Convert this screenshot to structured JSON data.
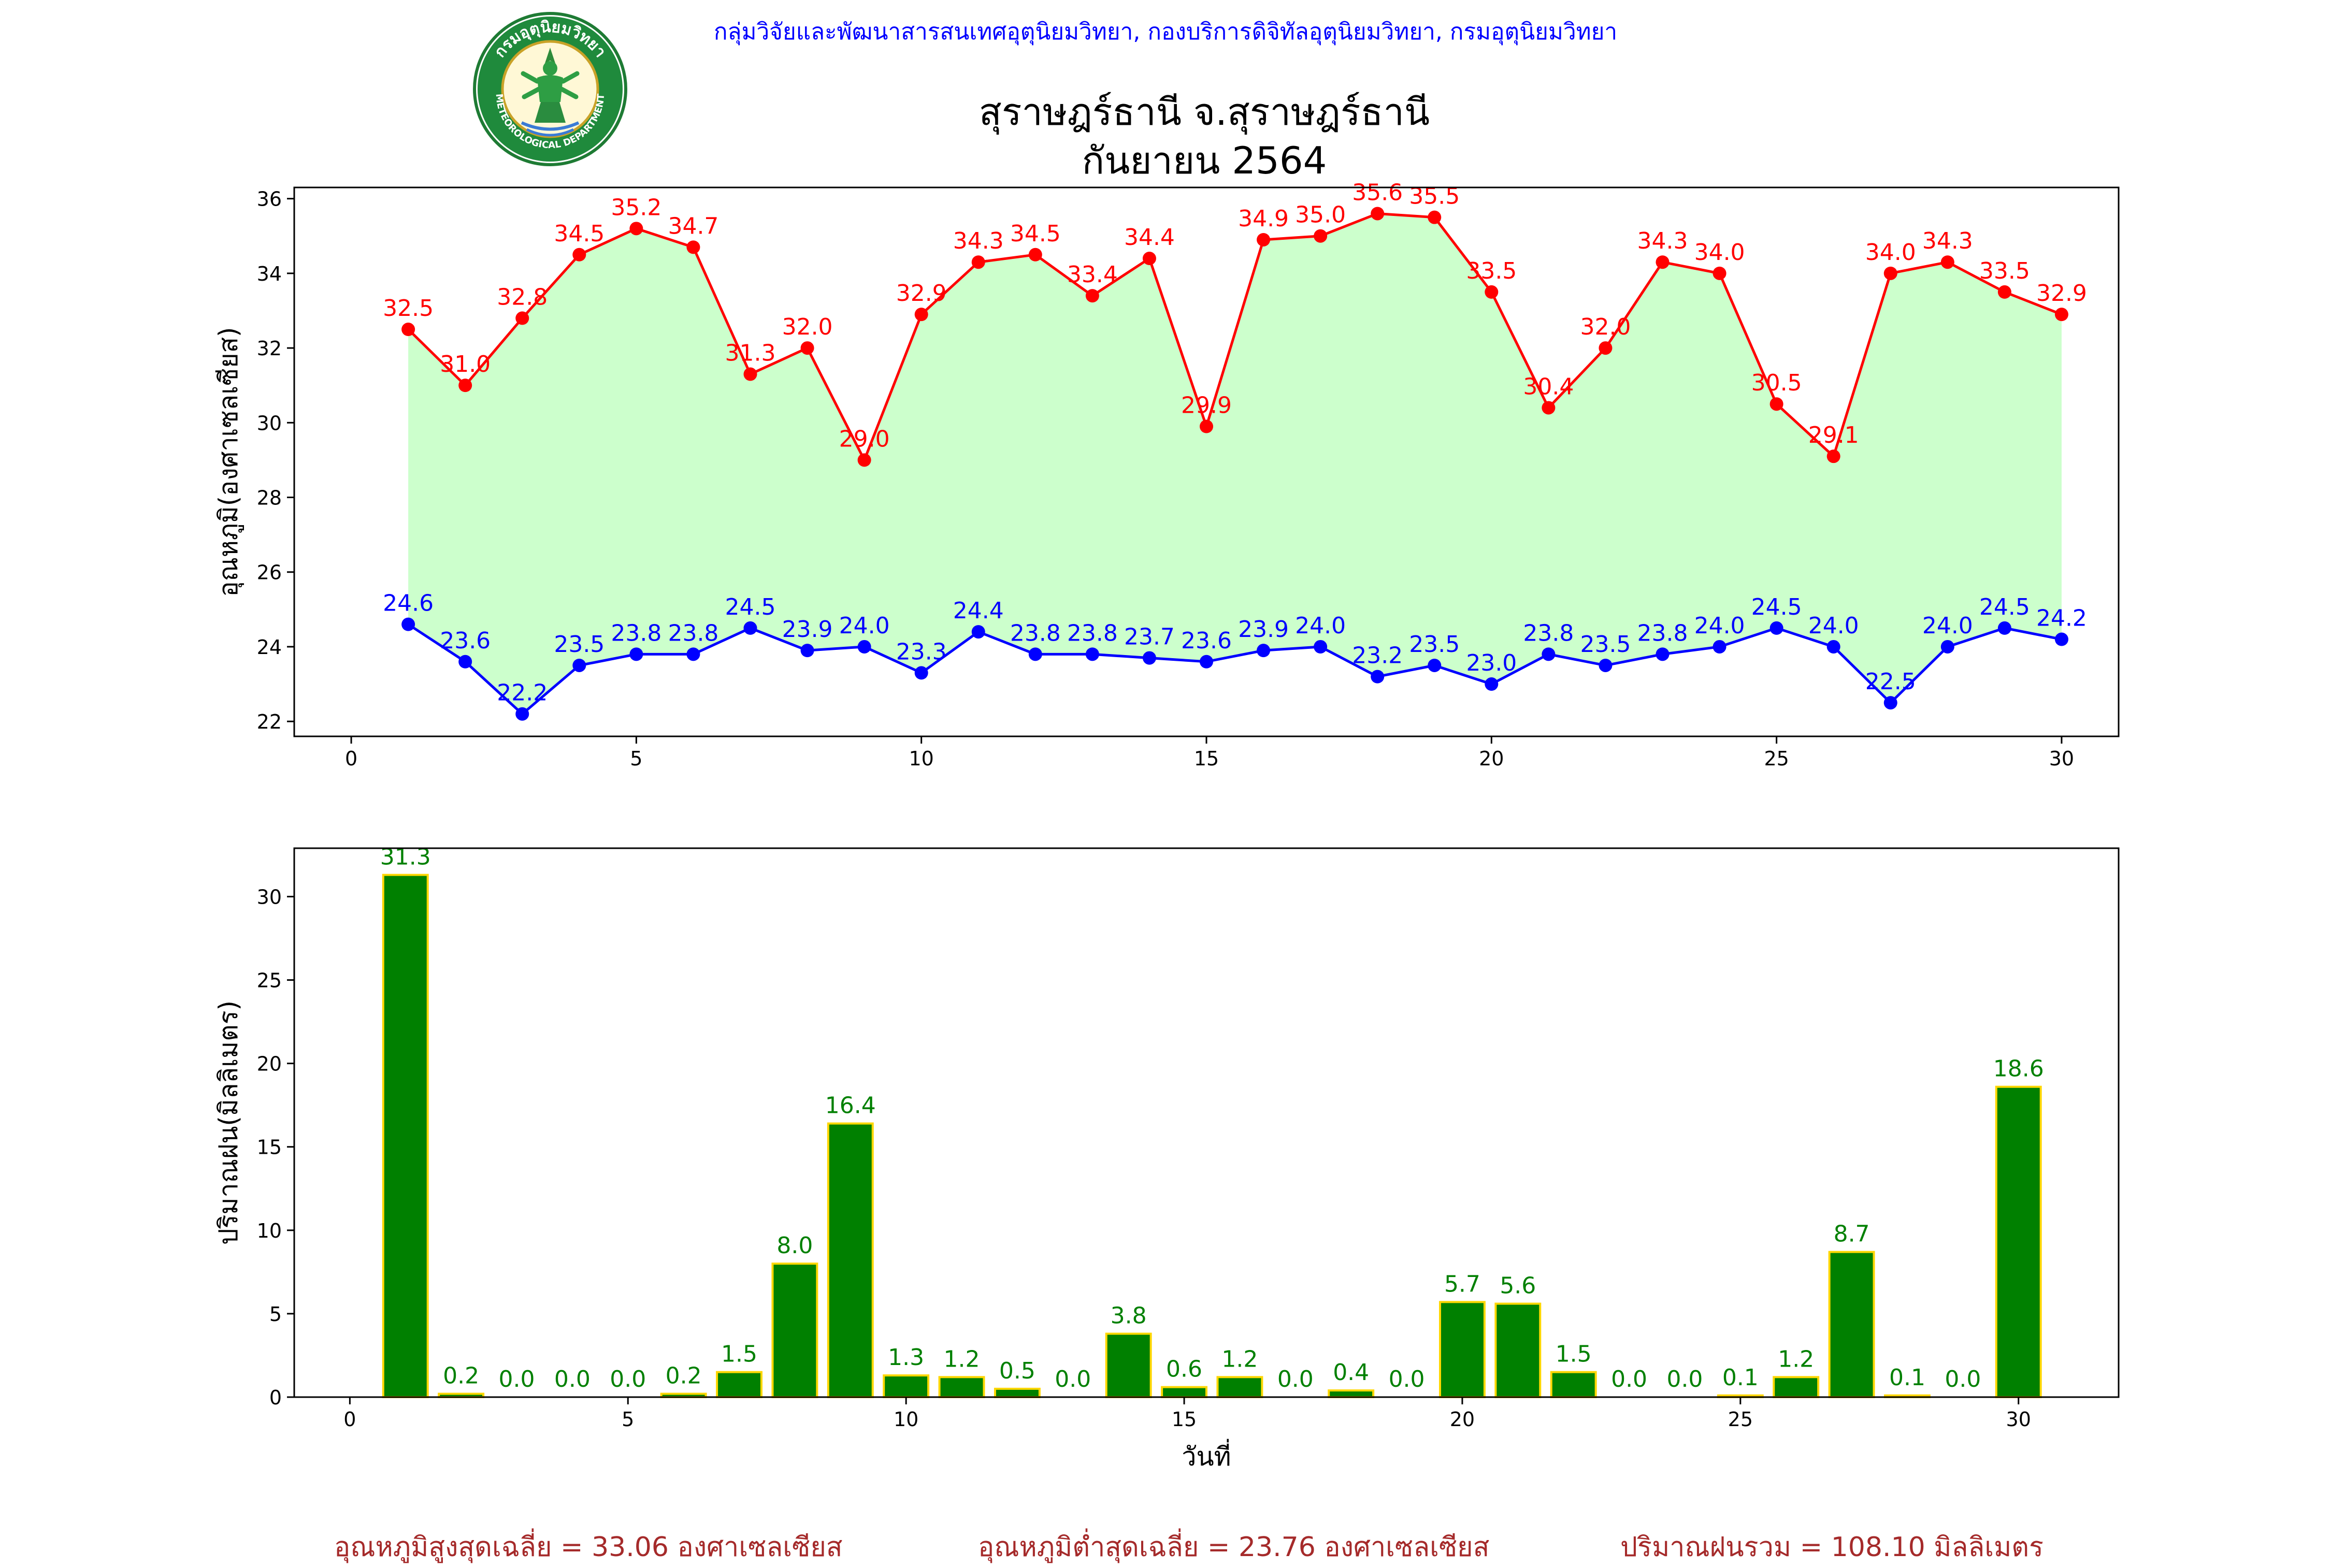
{
  "header": {
    "organization": "กลุ่มวิจัยและพัฒนาสารสนเทศอุตุนิยมวิทยา, กองบริการดิจิทัลอุตุนิยมวิทยา, กรมอุตุนิยมวิทยา",
    "title_line1": "สุราษฎร์ธานี จ.สุราษฎร์ธานี",
    "title_line2": "กันยายน 2564",
    "logo_text": "กรมอุตุนิยมวิทยา",
    "logo_subtext": "METEOROLOGICAL DEPARTMENT"
  },
  "colors": {
    "max_temp": "#ff0000",
    "min_temp": "#0000ff",
    "fill": "#ccffcc",
    "rain_bar": "#008000",
    "rain_edge": "#ffd700",
    "rain_label": "#008000",
    "footer": "#a52a2a",
    "header": "#0000ff"
  },
  "chart_data": [
    {
      "type": "line",
      "ylabel": "อุณหภูมิ(องศาเซลเซียส)",
      "xlim": [
        -1,
        31
      ],
      "ylim": [
        21.6,
        36.3
      ],
      "x_ticks": [
        0,
        5,
        10,
        15,
        20,
        25,
        30
      ],
      "y_ticks": [
        22,
        24,
        26,
        28,
        30,
        32,
        34,
        36
      ],
      "x": [
        1,
        2,
        3,
        4,
        5,
        6,
        7,
        8,
        9,
        10,
        11,
        12,
        13,
        14,
        15,
        16,
        17,
        18,
        19,
        20,
        21,
        22,
        23,
        24,
        25,
        26,
        27,
        28,
        29,
        30
      ],
      "series": [
        {
          "color": "#ff0000",
          "values": [
            32.5,
            31.0,
            32.8,
            34.5,
            35.2,
            34.7,
            31.3,
            32.0,
            29.0,
            32.9,
            34.3,
            34.5,
            33.4,
            34.4,
            29.9,
            34.9,
            35.0,
            35.6,
            35.5,
            33.5,
            30.4,
            32.0,
            34.3,
            34.0,
            30.5,
            29.1,
            34.0,
            34.3,
            33.5,
            32.9
          ]
        },
        {
          "color": "#0000ff",
          "values": [
            24.6,
            23.6,
            22.2,
            23.5,
            23.8,
            23.8,
            24.5,
            23.9,
            24.0,
            23.3,
            24.4,
            23.8,
            23.8,
            23.7,
            23.6,
            23.9,
            24.0,
            23.2,
            23.5,
            23.0,
            23.8,
            23.5,
            23.8,
            24.0,
            24.5,
            24.0,
            22.5,
            24.0,
            24.5,
            24.2
          ]
        }
      ],
      "grid": false
    },
    {
      "type": "bar",
      "ylabel": "ปริมาณฝน(มิลลิเมตร)",
      "xlabel": "วันที่",
      "xlim": [
        -1,
        31.8
      ],
      "ylim": [
        0,
        32.9
      ],
      "x_ticks": [
        0,
        5,
        10,
        15,
        20,
        25,
        30
      ],
      "y_ticks": [
        0,
        5,
        10,
        15,
        20,
        25,
        30
      ],
      "x": [
        1,
        2,
        3,
        4,
        5,
        6,
        7,
        8,
        9,
        10,
        11,
        12,
        13,
        14,
        15,
        16,
        17,
        18,
        19,
        20,
        21,
        22,
        23,
        24,
        25,
        26,
        27,
        28,
        29,
        30
      ],
      "values": [
        31.3,
        0.2,
        0.0,
        0.0,
        0.0,
        0.2,
        1.5,
        8.0,
        16.4,
        1.3,
        1.2,
        0.5,
        0.0,
        3.8,
        0.6,
        1.2,
        0.0,
        0.4,
        0.0,
        5.7,
        5.6,
        1.5,
        0.0,
        0.0,
        0.1,
        1.2,
        8.7,
        0.1,
        0.0,
        18.6
      ],
      "grid": false
    }
  ],
  "footer": {
    "avg_max": "อุณหภูมิสูงสุดเฉลี่ย = 33.06 องศาเซลเซียส",
    "avg_min": "อุณหภูมิต่ำสุดเฉลี่ย = 23.76 องศาเซลเซียส",
    "total_rain": "ปริมาณฝนรวม = 108.10 มิลลิเมตร"
  }
}
